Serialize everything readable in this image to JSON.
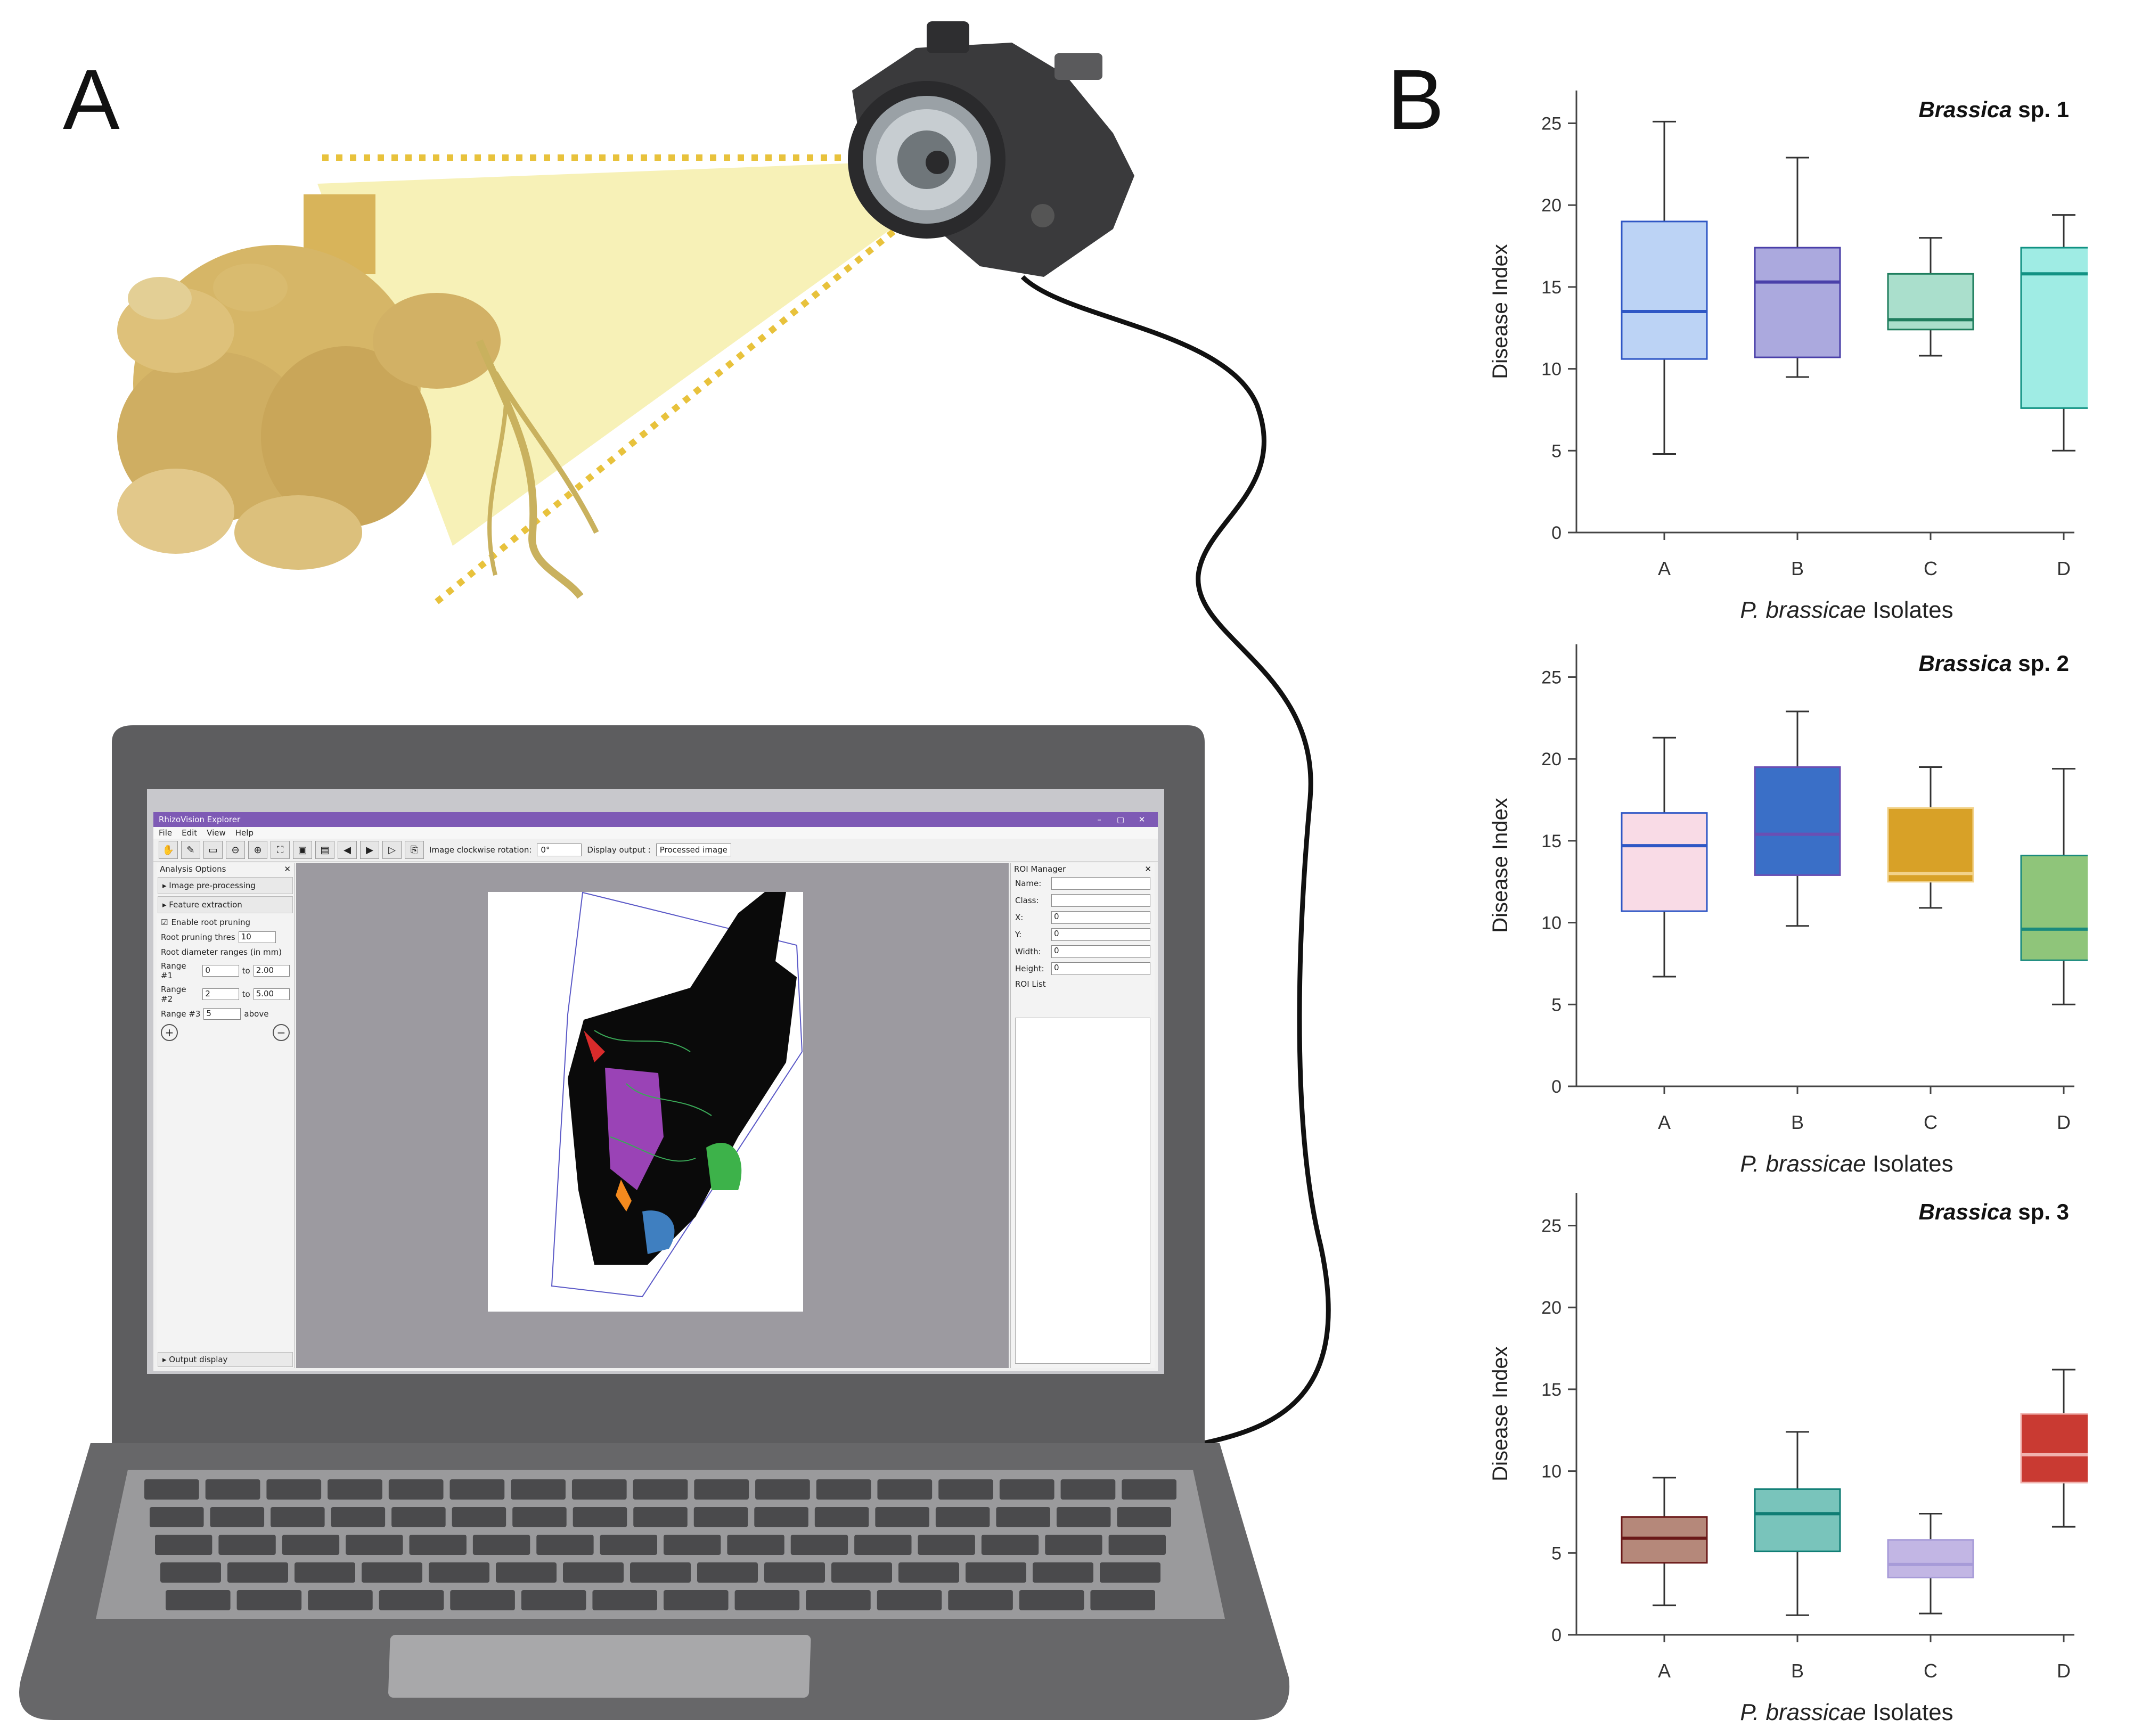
{
  "panels": {
    "a_label": "A",
    "b_label": "B"
  },
  "colors": {
    "laptop_body": "#5d5d5f",
    "laptop_base": "#676769",
    "key": "#4a4a4c",
    "camera_body": "#3a3a3c",
    "light_beam": "#f6efaa",
    "dotted_line": "#e8c23c",
    "app_titlebar": "#7e5ab5"
  },
  "app": {
    "title": "RhizoVision Explorer",
    "window_buttons": [
      "–",
      "▢",
      "✕"
    ],
    "menus": [
      "File",
      "Edit",
      "View",
      "Help"
    ],
    "rotation_label": "Image clockwise rotation:",
    "rotation_value": "0°",
    "output_label": "Display output :",
    "output_value": "Processed image",
    "left_panel": {
      "title": "Analysis Options",
      "image_preprocessing": "▸ Image pre-processing",
      "feature_extraction": "▸ Feature extraction",
      "enable_pruning": "Enable root pruning",
      "pruning_threshold_label": "Root pruning thres",
      "pruning_threshold_value": "10",
      "diameter_ranges_label": "Root diameter ranges (in mm)",
      "ranges": [
        {
          "label": "Range #1",
          "from": "0",
          "to_label": "to",
          "to": "2.00"
        },
        {
          "label": "Range #2",
          "from": "2",
          "to_label": "to",
          "to": "5.00"
        },
        {
          "label": "Range #3",
          "from": "5",
          "to_label": "above",
          "to": ""
        }
      ],
      "output_display": "▸ Output display"
    },
    "roi_manager": {
      "title": "ROI Manager",
      "fields": [
        {
          "label": "Name:",
          "value": ""
        },
        {
          "label": "Class:",
          "value": ""
        },
        {
          "label": "X:",
          "value": "0"
        },
        {
          "label": "Y:",
          "value": "0"
        },
        {
          "label": "Width:",
          "value": "0"
        },
        {
          "label": "Height:",
          "value": "0"
        }
      ],
      "list_label": "ROI List"
    }
  },
  "chart_data": [
    {
      "type": "box",
      "title_italic": "Brassica",
      "title_rest": " sp. 1",
      "xlabel_italic": "P. brassicae",
      "xlabel_rest": " Isolates",
      "ylabel": "Disease Index",
      "ylim": [
        0,
        27
      ],
      "yticks": [
        0,
        5,
        10,
        15,
        20,
        25
      ],
      "categories": [
        "A",
        "B",
        "C",
        "D"
      ],
      "boxes": [
        {
          "min": 4.8,
          "q1": 10.6,
          "median": 13.5,
          "q3": 19.0,
          "max": 25.1,
          "fill": "#bcd3f5",
          "line": "#2f57c5"
        },
        {
          "min": 9.5,
          "q1": 10.7,
          "median": 15.3,
          "q3": 17.4,
          "max": 22.9,
          "fill": "#aba9de",
          "line": "#4a3fa9"
        },
        {
          "min": 10.8,
          "q1": 12.4,
          "median": 13.0,
          "q3": 15.8,
          "max": 18.0,
          "fill": "#aadfcc",
          "line": "#1f7e5e"
        },
        {
          "min": 5.0,
          "q1": 7.6,
          "median": 15.8,
          "q3": 17.4,
          "max": 19.4,
          "fill": "#9fece4",
          "line": "#119283"
        }
      ]
    },
    {
      "type": "box",
      "title_italic": "Brassica",
      "title_rest": " sp. 2",
      "xlabel_italic": "P. brassicae",
      "xlabel_rest": " Isolates",
      "ylabel": "Disease Index",
      "ylim": [
        0,
        27
      ],
      "yticks": [
        0,
        5,
        10,
        15,
        20,
        25
      ],
      "categories": [
        "A",
        "B",
        "C",
        "D"
      ],
      "boxes": [
        {
          "min": 6.7,
          "q1": 10.7,
          "median": 14.7,
          "q3": 16.7,
          "max": 21.3,
          "fill": "#f9dbe6",
          "line": "#2f57c5"
        },
        {
          "min": 9.8,
          "q1": 12.9,
          "median": 15.4,
          "q3": 19.5,
          "max": 22.9,
          "fill": "#3a6fc7",
          "line": "#6a4fb3"
        },
        {
          "min": 10.9,
          "q1": 12.5,
          "median": 13.0,
          "q3": 17.0,
          "max": 19.5,
          "fill": "#d8a127",
          "line": "#f2d28a"
        },
        {
          "min": 5.0,
          "q1": 7.7,
          "median": 9.6,
          "q3": 14.1,
          "max": 19.4,
          "fill": "#8fc57a",
          "line": "#1a8a7d"
        }
      ]
    },
    {
      "type": "box",
      "title_italic": "Brassica",
      "title_rest": " sp. 3",
      "xlabel_italic": "P. brassicae",
      "xlabel_rest": " Isolates",
      "ylabel": "Disease Index",
      "ylim": [
        0,
        27
      ],
      "yticks": [
        0,
        5,
        10,
        15,
        20,
        25
      ],
      "categories": [
        "A",
        "B",
        "C",
        "D"
      ],
      "boxes": [
        {
          "min": 1.8,
          "q1": 4.4,
          "median": 5.9,
          "q3": 7.2,
          "max": 9.6,
          "fill": "#b5887a",
          "line": "#6a1818"
        },
        {
          "min": 1.2,
          "q1": 5.1,
          "median": 7.4,
          "q3": 8.9,
          "max": 12.4,
          "fill": "#79c4bb",
          "line": "#0f7d74"
        },
        {
          "min": 1.3,
          "q1": 3.5,
          "median": 4.3,
          "q3": 5.8,
          "max": 7.4,
          "fill": "#c2b6e4",
          "line": "#a79bd8"
        },
        {
          "min": 6.6,
          "q1": 9.3,
          "median": 11.0,
          "q3": 13.5,
          "max": 16.2,
          "fill": "#c93a32",
          "line": "#f0b2ae"
        }
      ]
    }
  ]
}
